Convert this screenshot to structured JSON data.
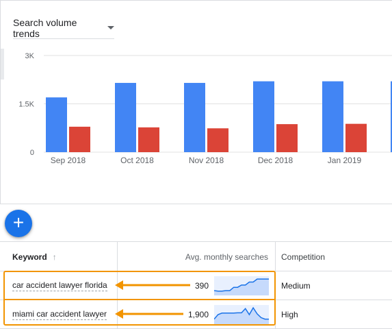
{
  "chart_panel": {
    "dropdown_label": "Search volume trends",
    "dropdown_icon": "caret-down-icon"
  },
  "chart_data": {
    "type": "bar",
    "categories": [
      "Sep 2018",
      "Oct 2018",
      "Nov 2018",
      "Dec 2018",
      "Jan 2019"
    ],
    "series": [
      {
        "values": [
          1700,
          2150,
          2150,
          2200,
          2200
        ],
        "color": "#4285f4"
      },
      {
        "values": [
          790,
          770,
          740,
          870,
          880
        ],
        "color": "#db4437"
      }
    ],
    "y_ticks": [
      {
        "value": 0,
        "label": "0"
      },
      {
        "value": 1500,
        "label": "1.5K"
      },
      {
        "value": 3000,
        "label": "3K"
      }
    ],
    "ylim": [
      0,
      3000
    ],
    "grid": true,
    "xlabel": "",
    "ylabel": ""
  },
  "fab": {
    "icon": "plus-icon"
  },
  "table": {
    "columns": {
      "keyword": "Keyword",
      "keyword_sort_icon": "arrow-up-icon",
      "searches": "Avg. monthly searches",
      "competition": "Competition"
    },
    "rows": [
      {
        "keyword": "car accident lawyer florida",
        "searches": "390",
        "competition": "Medium",
        "trend": [
          0.18,
          0.15,
          0.15,
          0.18,
          0.18,
          0.4,
          0.4,
          0.55,
          0.55,
          0.75,
          0.75,
          0.95,
          0.95,
          0.95,
          0.95
        ]
      },
      {
        "keyword": "miami car accident lawyer",
        "searches": "1,900",
        "competition": "High",
        "trend": [
          0.2,
          0.5,
          0.6,
          0.6,
          0.6,
          0.6,
          0.62,
          0.62,
          0.9,
          0.5,
          0.95,
          0.55,
          0.3,
          0.2,
          0.2
        ]
      }
    ]
  },
  "annotation": {
    "color": "#f29400"
  }
}
